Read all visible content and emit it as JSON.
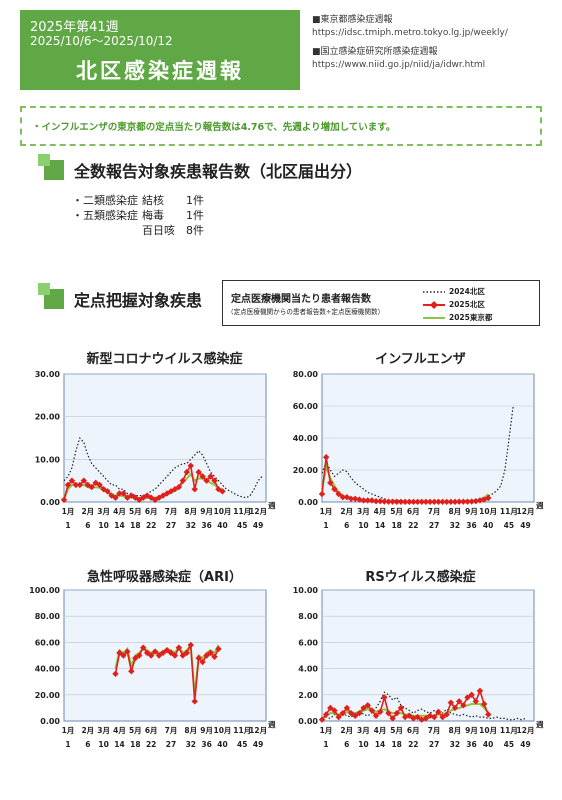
{
  "header": {
    "week": "2025年第41週",
    "range": "2025/10/6～2025/10/12",
    "title": "北区感染症週報"
  },
  "sources": [
    {
      "name": "■東京都感染症週報",
      "url": "https://idsc.tmiph.metro.tokyo.lg.jp/weekly/"
    },
    {
      "name": "■国立感染症研究所感染症週報",
      "url": "https://www.niid.go.jp/niid/ja/idwr.html"
    }
  ],
  "notice": "・インフルエンザの東京都の定点当たり報告数は4.76で、先週より増加しています。",
  "section1": {
    "title": "全数報告対象疾患報告数（北区届出分）"
  },
  "cases": [
    {
      "category": "・二類感染症",
      "disease": "結核",
      "count": "1件"
    },
    {
      "category": "・五類感染症",
      "disease": "梅毒",
      "count": "1件"
    },
    {
      "category": "",
      "disease": "百日咳",
      "count": "8件"
    }
  ],
  "section2": {
    "title": "定点把握対象疾患"
  },
  "legend": {
    "title": "定点医療機関当たり患者報告数",
    "subtitle": "（定点医療機関からの患者報告数÷定点医療機関数）",
    "items": [
      {
        "label": "2024北区",
        "color": "#222222",
        "style": "dotted"
      },
      {
        "label": "2025北区",
        "color": "#e0201c",
        "style": "diamond"
      },
      {
        "label": "2025東京都",
        "color": "#8dc63f",
        "style": "solid"
      }
    ]
  },
  "chart_data": [
    {
      "type": "line",
      "title": "新型コロナウイルス感染症",
      "ylim": [
        0,
        30
      ],
      "yticks": [
        "0.00",
        "10.00",
        "20.00",
        "30.00"
      ],
      "x_month_labels": [
        "1月",
        "2月",
        "3月",
        "4月",
        "5月",
        "6月",
        "7月",
        "8月",
        "9月",
        "10月",
        "11月",
        "12月"
      ],
      "x_week_labels": [
        "1",
        "6",
        "10",
        "14",
        "18",
        "22",
        "27",
        "32",
        "36",
        "40",
        "45",
        "49"
      ],
      "x_unit": "週",
      "series": [
        {
          "name": "2024北区",
          "values": [
            5,
            6,
            8,
            12,
            15,
            14,
            11,
            9,
            8,
            7,
            6,
            5,
            4,
            4,
            3,
            3,
            2,
            2,
            1.5,
            1.5,
            1.5,
            2,
            2.5,
            3,
            4,
            5,
            6,
            7,
            8,
            8.5,
            9,
            9,
            10,
            11,
            12,
            11,
            9,
            7,
            6,
            5,
            4,
            3,
            2.5,
            2,
            1.5,
            1.2,
            1,
            1.5,
            3,
            5,
            6
          ]
        },
        {
          "name": "2025北区",
          "values": [
            0.5,
            4,
            5,
            4,
            4,
            5,
            4,
            3.5,
            4.5,
            4,
            3,
            2.5,
            1.5,
            1,
            2,
            2,
            1,
            1.5,
            1,
            0.5,
            1,
            1.5,
            1,
            0.5,
            1,
            1.5,
            2,
            2.5,
            3,
            3.5,
            5,
            7,
            8.5,
            3,
            7,
            6,
            5,
            6,
            5,
            3,
            2.5
          ]
        },
        {
          "name": "2025東京都",
          "values": [
            0.5,
            3,
            4,
            4,
            3.8,
            4,
            3.5,
            3.2,
            3.5,
            3.3,
            2.7,
            2.2,
            1.8,
            1.5,
            1.5,
            1.4,
            1.2,
            1.1,
            1,
            0.9,
            0.9,
            1,
            1,
            1,
            1.2,
            1.5,
            1.8,
            2.2,
            2.8,
            3.5,
            4.5,
            5.5,
            6.5,
            5,
            5.5,
            5.5,
            5,
            4.5,
            4,
            3.2,
            2.8
          ]
        }
      ]
    },
    {
      "type": "line",
      "title": "インフルエンザ",
      "ylim": [
        0,
        80
      ],
      "yticks": [
        "0.00",
        "20.00",
        "40.00",
        "60.00",
        "80.00"
      ],
      "x_month_labels": [
        "1月",
        "2月",
        "3月",
        "4月",
        "5月",
        "6月",
        "7月",
        "8月",
        "9月",
        "10月",
        "11月",
        "12月"
      ],
      "x_week_labels": [
        "1",
        "6",
        "10",
        "14",
        "18",
        "22",
        "27",
        "32",
        "36",
        "40",
        "45",
        "49"
      ],
      "x_unit": "週",
      "series": [
        {
          "name": "2024北区",
          "values": [
            18,
            25,
            20,
            16,
            18,
            20,
            19,
            15,
            12,
            10,
            8,
            6,
            5,
            4,
            3,
            2,
            1.5,
            1,
            1,
            0.8,
            0.6,
            0.5,
            0.4,
            0.3,
            0.3,
            0.2,
            0.2,
            0.2,
            0.2,
            0.3,
            0.3,
            0.4,
            0.5,
            0.5,
            0.6,
            0.8,
            1,
            1.5,
            2,
            3,
            4,
            5,
            7,
            10,
            20,
            40,
            60
          ]
        },
        {
          "name": "2025北区",
          "values": [
            5,
            28,
            12,
            8,
            5,
            3,
            3,
            2,
            2,
            1.5,
            1,
            1,
            1,
            0.5,
            0.5,
            0.3,
            0.2,
            0.2,
            0.1,
            0.1,
            0.1,
            0.1,
            0.1,
            0.1,
            0.1,
            0.1,
            0.1,
            0.1,
            0.1,
            0.1,
            0.1,
            0.1,
            0.1,
            0.2,
            0.2,
            0.2,
            0.3,
            0.5,
            1,
            1.5,
            2.5
          ]
        },
        {
          "name": "2025東京都",
          "values": [
            8,
            22,
            15,
            10,
            6,
            4,
            3,
            2.5,
            2,
            1.5,
            1.2,
            1,
            0.8,
            0.6,
            0.5,
            0.4,
            0.3,
            0.2,
            0.2,
            0.2,
            0.2,
            0.2,
            0.2,
            0.2,
            0.2,
            0.2,
            0.2,
            0.2,
            0.2,
            0.2,
            0.2,
            0.2,
            0.3,
            0.3,
            0.4,
            0.5,
            0.7,
            1,
            1.5,
            2.5,
            4.8
          ]
        }
      ]
    },
    {
      "type": "line",
      "title": "急性呼吸器感染症（ARI）",
      "ylim": [
        0,
        100
      ],
      "yticks": [
        "0.00",
        "20.00",
        "40.00",
        "60.00",
        "80.00",
        "100.00"
      ],
      "x_month_labels": [
        "1月",
        "2月",
        "3月",
        "4月",
        "5月",
        "6月",
        "7月",
        "8月",
        "9月",
        "10月",
        "11月",
        "12月"
      ],
      "x_week_labels": [
        "1",
        "6",
        "10",
        "14",
        "18",
        "22",
        "27",
        "32",
        "36",
        "40",
        "45",
        "49"
      ],
      "x_unit": "週",
      "x_start_week": 14,
      "series": [
        {
          "name": "2025北区",
          "values": [
            36,
            52,
            50,
            53,
            38,
            48,
            50,
            56,
            52,
            50,
            53,
            50,
            52,
            54,
            52,
            50,
            56,
            50,
            52,
            58,
            15,
            48,
            45,
            50,
            52,
            49,
            55
          ]
        },
        {
          "name": "2025東京都",
          "values": [
            40,
            54,
            52,
            55,
            42,
            50,
            52,
            56,
            54,
            52,
            54,
            52,
            53,
            55,
            54,
            52,
            57,
            52,
            54,
            58,
            20,
            50,
            48,
            52,
            54,
            52,
            58
          ]
        }
      ]
    },
    {
      "type": "line",
      "title": "RSウイルス感染症",
      "ylim": [
        0,
        10
      ],
      "yticks": [
        "0.00",
        "2.00",
        "4.00",
        "6.00",
        "8.00",
        "10.00"
      ],
      "x_month_labels": [
        "1月",
        "2月",
        "3月",
        "4月",
        "5月",
        "6月",
        "7月",
        "8月",
        "9月",
        "10月",
        "11月",
        "12月"
      ],
      "x_week_labels": [
        "1",
        "6",
        "10",
        "14",
        "18",
        "22",
        "27",
        "32",
        "36",
        "40",
        "45",
        "49"
      ],
      "x_unit": "週",
      "series": [
        {
          "name": "2024北区",
          "values": [
            0.2,
            0.3,
            0.2,
            0.5,
            0.3,
            0.6,
            0.4,
            0.3,
            0.5,
            0.8,
            0.5,
            0.4,
            0.6,
            1,
            1.5,
            2.2,
            2,
            1.6,
            1.8,
            1.2,
            1,
            0.8,
            0.6,
            0.8,
            0.9,
            0.7,
            0.6,
            0.8,
            0.5,
            0.6,
            0.9,
            0.6,
            0.5,
            0.4,
            0.5,
            0.4,
            0.3,
            0.4,
            0.3,
            0.3,
            0.2,
            0.2,
            0.3,
            0.2,
            0.2,
            0.1,
            0.1,
            0.2,
            0.1,
            0.2
          ]
        },
        {
          "name": "2025北区",
          "values": [
            0.1,
            0.5,
            1,
            0.8,
            0.3,
            0.6,
            1,
            0.6,
            0.4,
            0.6,
            1,
            1.2,
            0.8,
            0.4,
            0.7,
            1.8,
            0.6,
            0.2,
            0.6,
            1,
            0.3,
            0.4,
            0.2,
            0.3,
            0.1,
            0.2,
            0.4,
            0.3,
            0.7,
            0.3,
            0.5,
            1.4,
            1,
            1.5,
            1.2,
            1.8,
            2,
            1.5,
            2.3,
            1.3,
            0.5
          ]
        },
        {
          "name": "2025東京都",
          "values": [
            0.2,
            0.4,
            0.6,
            0.6,
            0.5,
            0.6,
            0.7,
            0.6,
            0.6,
            0.7,
            0.8,
            0.9,
            0.8,
            0.7,
            0.8,
            0.9,
            0.7,
            0.6,
            0.6,
            0.6,
            0.5,
            0.5,
            0.4,
            0.4,
            0.4,
            0.4,
            0.4,
            0.4,
            0.5,
            0.5,
            0.6,
            0.8,
            0.9,
            1,
            1.1,
            1.2,
            1.3,
            1.3,
            1.3,
            1,
            0.6
          ]
        }
      ]
    }
  ]
}
